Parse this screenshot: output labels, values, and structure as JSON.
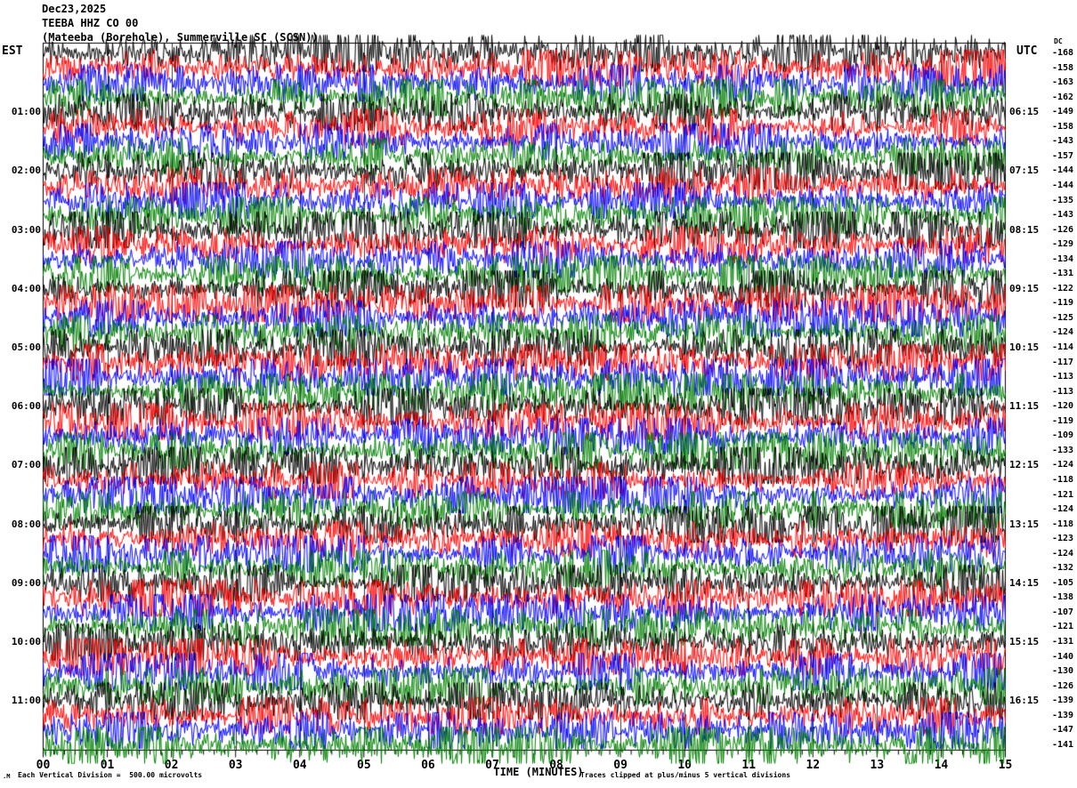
{
  "header": {
    "date": "Dec23,2025",
    "station_line": "TEEBA HHZ CO 00",
    "location_line": "(Mateeba (Borehole), Summerville SC (SCSN))"
  },
  "axes": {
    "left_label": "EST",
    "right_label": "UTC",
    "dc_label": "DC",
    "x_title": "TIME (MINUTES)"
  },
  "footer": {
    "left": "Each Vertical Division =  500.00 microvolts",
    "right": "Traces clipped at plus/minus 5 vertical divisions",
    "corner_mark": ".M"
  },
  "chart_data": {
    "type": "line",
    "subtype": "helicorder-seismogram",
    "title": "TEEBA HHZ CO 00",
    "station_description": "(Mateeba (Borehole), Summerville SC (SCSN))",
    "date": "Dec23,2025",
    "xlabel": "TIME (MINUTES)",
    "x_range_minutes": [
      0,
      15
    ],
    "x_ticks": [
      "00",
      "01",
      "02",
      "03",
      "04",
      "05",
      "06",
      "07",
      "08",
      "09",
      "10",
      "11",
      "12",
      "13",
      "14",
      "15"
    ],
    "minor_ticks_per_minute": 5,
    "minutes_per_row": 15,
    "rows_per_hour": 4,
    "division_microvolts": 500.0,
    "clip_divisions": 5,
    "grid": true,
    "gridline_color": "#383838",
    "trace_colors": {
      "black": "#000000",
      "red": "#ff0000",
      "blue": "#0000ff",
      "green": "#008000"
    },
    "rows": [
      {
        "est": "",
        "utc": "",
        "dc": -168,
        "color": "black"
      },
      {
        "est": "",
        "utc": "",
        "dc": -158,
        "color": "red"
      },
      {
        "est": "",
        "utc": "",
        "dc": -163,
        "color": "blue"
      },
      {
        "est": "",
        "utc": "",
        "dc": -162,
        "color": "green"
      },
      {
        "est": "01:00",
        "utc": "06:15",
        "dc": -149,
        "color": "black"
      },
      {
        "est": "",
        "utc": "",
        "dc": -158,
        "color": "red"
      },
      {
        "est": "",
        "utc": "",
        "dc": -143,
        "color": "blue"
      },
      {
        "est": "",
        "utc": "",
        "dc": -157,
        "color": "green"
      },
      {
        "est": "02:00",
        "utc": "07:15",
        "dc": -144,
        "color": "black"
      },
      {
        "est": "",
        "utc": "",
        "dc": -144,
        "color": "red"
      },
      {
        "est": "",
        "utc": "",
        "dc": -135,
        "color": "blue"
      },
      {
        "est": "",
        "utc": "",
        "dc": -143,
        "color": "green"
      },
      {
        "est": "03:00",
        "utc": "08:15",
        "dc": -126,
        "color": "black"
      },
      {
        "est": "",
        "utc": "",
        "dc": -129,
        "color": "red"
      },
      {
        "est": "",
        "utc": "",
        "dc": -134,
        "color": "blue"
      },
      {
        "est": "",
        "utc": "",
        "dc": -131,
        "color": "green"
      },
      {
        "est": "04:00",
        "utc": "09:15",
        "dc": -122,
        "color": "black"
      },
      {
        "est": "",
        "utc": "",
        "dc": -119,
        "color": "red"
      },
      {
        "est": "",
        "utc": "",
        "dc": -125,
        "color": "blue"
      },
      {
        "est": "",
        "utc": "",
        "dc": -124,
        "color": "green"
      },
      {
        "est": "05:00",
        "utc": "10:15",
        "dc": -114,
        "color": "black"
      },
      {
        "est": "",
        "utc": "",
        "dc": -117,
        "color": "red"
      },
      {
        "est": "",
        "utc": "",
        "dc": -113,
        "color": "blue"
      },
      {
        "est": "",
        "utc": "",
        "dc": -113,
        "color": "green"
      },
      {
        "est": "06:00",
        "utc": "11:15",
        "dc": -120,
        "color": "black"
      },
      {
        "est": "",
        "utc": "",
        "dc": -119,
        "color": "red"
      },
      {
        "est": "",
        "utc": "",
        "dc": -109,
        "color": "blue"
      },
      {
        "est": "",
        "utc": "",
        "dc": -133,
        "color": "green"
      },
      {
        "est": "07:00",
        "utc": "12:15",
        "dc": -124,
        "color": "black"
      },
      {
        "est": "",
        "utc": "",
        "dc": -118,
        "color": "red"
      },
      {
        "est": "",
        "utc": "",
        "dc": -121,
        "color": "blue"
      },
      {
        "est": "",
        "utc": "",
        "dc": -124,
        "color": "green"
      },
      {
        "est": "08:00",
        "utc": "13:15",
        "dc": -118,
        "color": "black"
      },
      {
        "est": "",
        "utc": "",
        "dc": -123,
        "color": "red"
      },
      {
        "est": "",
        "utc": "",
        "dc": -124,
        "color": "blue"
      },
      {
        "est": "",
        "utc": "",
        "dc": -132,
        "color": "green"
      },
      {
        "est": "09:00",
        "utc": "14:15",
        "dc": -105,
        "color": "black"
      },
      {
        "est": "",
        "utc": "",
        "dc": -138,
        "color": "red"
      },
      {
        "est": "",
        "utc": "",
        "dc": -107,
        "color": "blue"
      },
      {
        "est": "",
        "utc": "",
        "dc": -121,
        "color": "green"
      },
      {
        "est": "10:00",
        "utc": "15:15",
        "dc": -131,
        "color": "black"
      },
      {
        "est": "",
        "utc": "",
        "dc": -140,
        "color": "red"
      },
      {
        "est": "",
        "utc": "",
        "dc": -130,
        "color": "blue"
      },
      {
        "est": "",
        "utc": "",
        "dc": -126,
        "color": "green"
      },
      {
        "est": "11:00",
        "utc": "16:15",
        "dc": -139,
        "color": "black"
      },
      {
        "est": "",
        "utc": "",
        "dc": -139,
        "color": "red"
      },
      {
        "est": "",
        "utc": "",
        "dc": -147,
        "color": "blue"
      },
      {
        "est": "",
        "utc": "",
        "dc": -141,
        "color": "green"
      }
    ]
  }
}
